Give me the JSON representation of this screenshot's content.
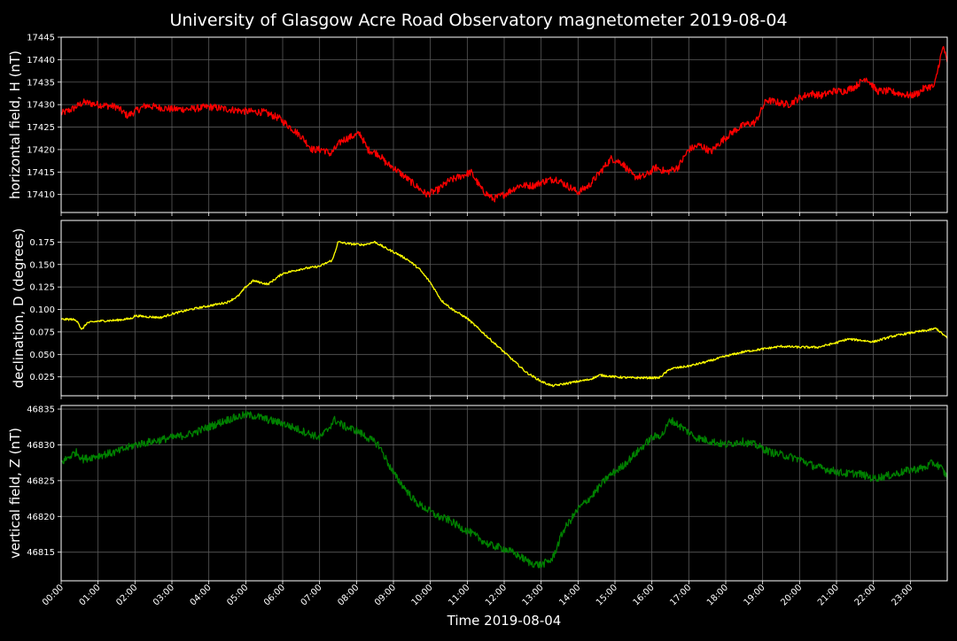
{
  "figure": {
    "title": "University of Glasgow Acre Road Observatory magnetometer 2019-08-04",
    "xlabel": "Time 2019-08-04",
    "background": "#000000",
    "foreground": "#ffffff",
    "grid_color": "#5a5a5a"
  },
  "chart_data": [
    {
      "type": "line",
      "ylabel": "horizontal field, H (nT)",
      "color": "#ff0000",
      "ylim": [
        17406,
        17445
      ],
      "yticks": [
        17410,
        17415,
        17420,
        17425,
        17430,
        17435,
        17440,
        17445
      ],
      "xlim": [
        0,
        24
      ],
      "grid": true,
      "noise": 0.8,
      "series": [
        {
          "x": [
            0,
            0.3,
            0.6,
            1,
            1.5,
            1.8,
            2,
            2.3,
            2.7,
            3,
            3.5,
            4,
            4.5,
            5,
            5.5,
            5.9,
            6.2,
            6.5,
            6.8,
            7.1,
            7.3,
            7.6,
            7.9,
            8.1,
            8.3,
            8.6,
            8.8,
            9,
            9.3,
            9.6,
            9.9,
            10.2,
            10.5,
            10.8,
            11.1,
            11.4,
            11.7,
            12,
            12.4,
            12.8,
            13.1,
            13.4,
            13.7,
            14,
            14.3,
            14.6,
            14.9,
            15.2,
            15.5,
            15.8,
            16.1,
            16.4,
            16.7,
            17,
            17.3,
            17.6,
            17.9,
            18.2,
            18.5,
            18.8,
            19.1,
            19.4,
            19.7,
            20,
            20.3,
            20.6,
            20.9,
            21.2,
            21.5,
            21.8,
            22.1,
            22.4,
            22.7,
            23,
            23.2,
            23.35,
            23.5,
            23.65,
            23.8,
            23.9,
            24
          ],
          "values": [
            17428,
            17429,
            17430.5,
            17430,
            17429.5,
            17427.5,
            17428.5,
            17429.8,
            17429.3,
            17429,
            17429,
            17429.5,
            17429,
            17428.5,
            17428.3,
            17427,
            17425,
            17423,
            17420,
            17420,
            17419,
            17422,
            17423,
            17423.5,
            17420,
            17419,
            17417,
            17416,
            17414,
            17412,
            17410,
            17411,
            17413,
            17414,
            17415,
            17411,
            17409,
            17410,
            17412,
            17412,
            17413,
            17413.5,
            17412,
            17410.5,
            17412,
            17415,
            17418,
            17417,
            17414,
            17414,
            17416,
            17415,
            17416,
            17420,
            17421,
            17419.5,
            17422,
            17424,
            17425.5,
            17426,
            17431,
            17430.5,
            17430,
            17431.5,
            17432.5,
            17432,
            17433,
            17433,
            17434,
            17436,
            17433,
            17433,
            17432.5,
            17432,
            17432.5,
            17433.5,
            17434,
            17434,
            17440,
            17443,
            17439
          ]
        }
      ]
    },
    {
      "type": "line",
      "ylabel": "declination, D (degrees)",
      "color": "#ffff00",
      "ylim": [
        0.004,
        0.199
      ],
      "yticks": [
        0.025,
        0.05,
        0.075,
        0.1,
        0.125,
        0.15,
        0.175
      ],
      "ytick_labels": [
        "0.025",
        "0.050",
        "0.075",
        "0.100",
        "0.125",
        "0.150",
        "0.175"
      ],
      "xlim": [
        0,
        24
      ],
      "grid": true,
      "noise": 0.0012,
      "series": [
        {
          "x": [
            0,
            0.3,
            0.45,
            0.55,
            0.7,
            1,
            1.5,
            1.9,
            2,
            2.3,
            2.7,
            3,
            3.5,
            4,
            4.5,
            4.8,
            5,
            5.2,
            5.4,
            5.6,
            6,
            6.5,
            7,
            7.2,
            7.35,
            7.5,
            7.8,
            8.2,
            8.5,
            8.8,
            9.1,
            9.4,
            9.7,
            10,
            10.3,
            10.6,
            11,
            11.4,
            11.8,
            12.2,
            12.6,
            13,
            13.3,
            13.6,
            14,
            14.3,
            14.6,
            15,
            15.4,
            15.8,
            16.2,
            16.5,
            17,
            17.5,
            18,
            18.5,
            19,
            19.5,
            20,
            20.5,
            21,
            21.3,
            21.6,
            22,
            22.5,
            23,
            23.5,
            23.7,
            24
          ],
          "values": [
            0.089,
            0.089,
            0.087,
            0.077,
            0.085,
            0.087,
            0.088,
            0.09,
            0.093,
            0.092,
            0.091,
            0.095,
            0.1,
            0.104,
            0.108,
            0.115,
            0.125,
            0.132,
            0.13,
            0.128,
            0.14,
            0.145,
            0.148,
            0.152,
            0.155,
            0.175,
            0.173,
            0.172,
            0.175,
            0.168,
            0.162,
            0.155,
            0.145,
            0.13,
            0.11,
            0.1,
            0.09,
            0.075,
            0.06,
            0.045,
            0.03,
            0.02,
            0.015,
            0.017,
            0.02,
            0.022,
            0.027,
            0.025,
            0.024,
            0.024,
            0.024,
            0.034,
            0.037,
            0.042,
            0.048,
            0.053,
            0.056,
            0.059,
            0.058,
            0.058,
            0.063,
            0.067,
            0.066,
            0.064,
            0.07,
            0.074,
            0.077,
            0.079,
            0.068
          ]
        }
      ]
    },
    {
      "type": "line",
      "ylabel": "vertical field, Z (nT)",
      "color": "#008000",
      "ylim": [
        46811,
        46835.5
      ],
      "yticks": [
        46815,
        46820,
        46825,
        46830,
        46835
      ],
      "xlim": [
        0,
        24
      ],
      "grid": true,
      "noise": 0.55,
      "series": [
        {
          "x": [
            0,
            0.4,
            0.6,
            1,
            1.5,
            2,
            2.5,
            3,
            3.5,
            4,
            4.5,
            5,
            5.3,
            5.6,
            6,
            6.5,
            7,
            7.2,
            7.4,
            7.7,
            8,
            8.3,
            8.6,
            8.8,
            9,
            9.3,
            9.6,
            9.9,
            10.2,
            10.5,
            10.8,
            11,
            11.3,
            11.6,
            12,
            12.4,
            12.7,
            13,
            13.3,
            13.6,
            14,
            14.4,
            14.8,
            15.2,
            15.6,
            16,
            16.3,
            16.5,
            16.8,
            17.2,
            17.6,
            18,
            18.4,
            18.8,
            19.2,
            19.6,
            20,
            20.4,
            20.8,
            21.2,
            21.6,
            22,
            22.5,
            23,
            23.4,
            23.6,
            23.8,
            24
          ],
          "values": [
            46827.5,
            46829,
            46828,
            46828.5,
            46829,
            46830,
            46830.5,
            46831,
            46831.5,
            46832.5,
            46833.5,
            46834.2,
            46834,
            46833.5,
            46833,
            46832,
            46831,
            46832,
            46833.5,
            46832.5,
            46832,
            46831,
            46830,
            46828,
            46826,
            46824,
            46822,
            46821,
            46820,
            46819.5,
            46818.5,
            46818,
            46817,
            46816,
            46815.5,
            46814.5,
            46813.5,
            46813.2,
            46814,
            46818,
            46821,
            46823,
            46825.5,
            46827,
            46829,
            46831,
            46831.5,
            46833.5,
            46832.5,
            46831,
            46830.5,
            46830,
            46830.5,
            46830,
            46829,
            46828.5,
            46828,
            46827,
            46826.5,
            46826,
            46826,
            46825.3,
            46825.8,
            46826.5,
            46826.8,
            46827.5,
            46827,
            46825.5
          ]
        }
      ]
    }
  ],
  "x_ticks": [
    "00:00",
    "01:00",
    "02:00",
    "03:00",
    "04:00",
    "05:00",
    "06:00",
    "07:00",
    "08:00",
    "09:00",
    "10:00",
    "11:00",
    "12:00",
    "13:00",
    "14:00",
    "15:00",
    "16:00",
    "17:00",
    "18:00",
    "19:00",
    "20:00",
    "21:00",
    "22:00",
    "23:00"
  ]
}
